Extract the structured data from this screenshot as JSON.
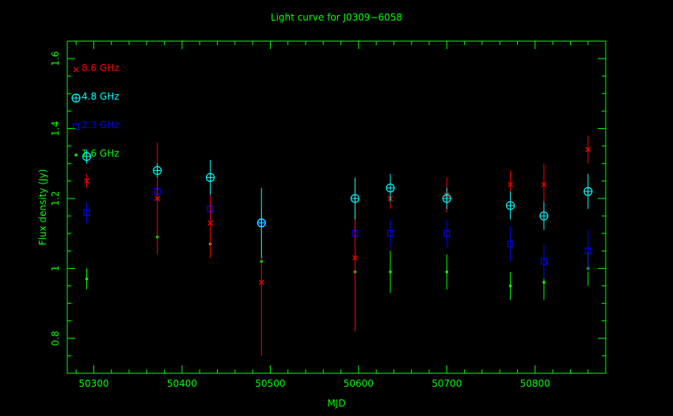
{
  "chart_data": {
    "type": "scatter",
    "title": "Light curve for J0309−6058",
    "xlabel": "MJD",
    "ylabel": "Flux density (Jy)",
    "xlim": [
      50270,
      50880
    ],
    "ylim": [
      0.7,
      1.65
    ],
    "xticks": [
      50300,
      50400,
      50500,
      50600,
      50700,
      50800
    ],
    "yticks": [
      0.8,
      1,
      1.2,
      1.4,
      1.6
    ],
    "xtick_labels": [
      "50300",
      "50400",
      "50500",
      "50600",
      "50700",
      "50800"
    ],
    "ytick_labels": [
      "0.8",
      "1",
      "1.2",
      "1.4",
      "1.6"
    ],
    "grid": false,
    "legend_position": "top-left",
    "background": "#000000",
    "axis_color": "#00ff00",
    "series": [
      {
        "name": "8.6 GHz",
        "color": "#ff0000",
        "marker": "cross",
        "points": [
          {
            "x": 50292,
            "y": 1.25,
            "err": 0.02
          },
          {
            "x": 50372,
            "y": 1.2,
            "err": 0.16
          },
          {
            "x": 50432,
            "y": 1.13,
            "err": 0.1
          },
          {
            "x": 50490,
            "y": 0.96,
            "err": 0.21
          },
          {
            "x": 50596,
            "y": 1.03,
            "err": 0.21
          },
          {
            "x": 50636,
            "y": 1.2,
            "err": 0.03
          },
          {
            "x": 50700,
            "y": 1.21,
            "err": 0.05
          },
          {
            "x": 50772,
            "y": 1.24,
            "err": 0.04
          },
          {
            "x": 50810,
            "y": 1.24,
            "err": 0.06
          },
          {
            "x": 50860,
            "y": 1.34,
            "err": 0.04
          }
        ]
      },
      {
        "name": "4.8 GHz",
        "color": "#00ffff",
        "marker": "circle-plus",
        "points": [
          {
            "x": 50292,
            "y": 1.32,
            "err": 0.02
          },
          {
            "x": 50372,
            "y": 1.28,
            "err": 0.02
          },
          {
            "x": 50432,
            "y": 1.26,
            "err": 0.05
          },
          {
            "x": 50490,
            "y": 1.13,
            "err": 0.1
          },
          {
            "x": 50596,
            "y": 1.2,
            "err": 0.06
          },
          {
            "x": 50636,
            "y": 1.23,
            "err": 0.04
          },
          {
            "x": 50700,
            "y": 1.2,
            "err": 0.03
          },
          {
            "x": 50772,
            "y": 1.18,
            "err": 0.04
          },
          {
            "x": 50810,
            "y": 1.15,
            "err": 0.04
          },
          {
            "x": 50860,
            "y": 1.22,
            "err": 0.05
          }
        ]
      },
      {
        "name": "2.3 GHz",
        "color": "#0000ff",
        "marker": "square",
        "points": [
          {
            "x": 50292,
            "y": 1.16,
            "err": 0.03
          },
          {
            "x": 50372,
            "y": 1.22,
            "err": 0.03
          },
          {
            "x": 50432,
            "y": 1.17,
            "err": 0.03
          },
          {
            "x": 50490,
            "y": 1.13,
            "err": 0.03
          },
          {
            "x": 50596,
            "y": 1.1,
            "err": 0.04
          },
          {
            "x": 50636,
            "y": 1.1,
            "err": 0.04
          },
          {
            "x": 50700,
            "y": 1.1,
            "err": 0.04
          },
          {
            "x": 50772,
            "y": 1.07,
            "err": 0.05
          },
          {
            "x": 50810,
            "y": 1.02,
            "err": 0.05
          },
          {
            "x": 50860,
            "y": 1.05,
            "err": 0.06
          }
        ]
      },
      {
        "name": "1.6 GHz",
        "color": "#00ff00",
        "marker": "dot",
        "points": [
          {
            "x": 50292,
            "y": 0.97,
            "err": 0.03
          },
          {
            "x": 50372,
            "y": 1.09,
            "err": 0.0
          },
          {
            "x": 50432,
            "y": 1.07,
            "err": 0.0
          },
          {
            "x": 50490,
            "y": 1.02,
            "err": 0.0
          },
          {
            "x": 50596,
            "y": 0.99,
            "err": 0.0
          },
          {
            "x": 50636,
            "y": 0.99,
            "err": 0.06
          },
          {
            "x": 50700,
            "y": 0.99,
            "err": 0.05
          },
          {
            "x": 50772,
            "y": 0.95,
            "err": 0.04
          },
          {
            "x": 50810,
            "y": 0.96,
            "err": 0.05
          },
          {
            "x": 50860,
            "y": 1.0,
            "err": 0.05
          }
        ]
      }
    ]
  }
}
